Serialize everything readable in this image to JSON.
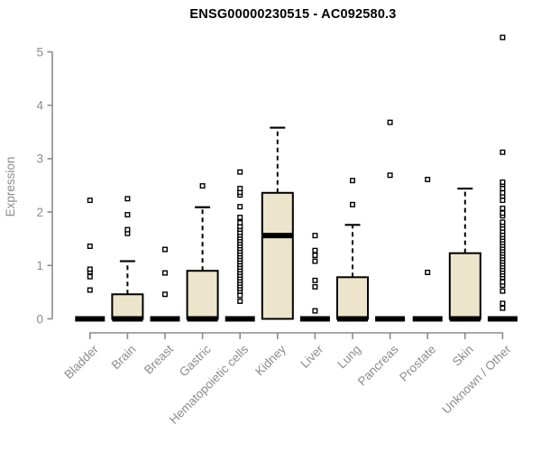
{
  "chart_data": {
    "type": "boxplot",
    "title": "ENSG00000230515 - AC092580.3",
    "ylabel": "Expression",
    "xlabel": "",
    "ylim": [
      0,
      5
    ],
    "yticks": [
      0,
      1,
      2,
      3,
      4,
      5
    ],
    "grid": "off",
    "legend": "none",
    "categories": [
      "Bladder",
      "Brain",
      "Breast",
      "Gastric",
      "Hematopoietic cells",
      "Kidney",
      "Liver",
      "Lung",
      "Pancreas",
      "Prostate",
      "Skin",
      "Unknown / Other"
    ],
    "series": [
      {
        "name": "Bladder",
        "q1": 0,
        "median": 0,
        "q3": 0,
        "whisker_low": 0,
        "whisker_high": 0,
        "outliers": [
          0.54,
          0.79,
          0.88,
          0.93,
          1.36,
          2.22
        ]
      },
      {
        "name": "Brain",
        "q1": 0,
        "median": 0,
        "q3": 0.46,
        "whisker_low": 0,
        "whisker_high": 1.08,
        "outliers": [
          1.6,
          1.67,
          1.95,
          2.25
        ]
      },
      {
        "name": "Breast",
        "q1": 0,
        "median": 0,
        "q3": 0,
        "whisker_low": 0,
        "whisker_high": 0,
        "outliers": [
          0.46,
          0.86,
          1.3
        ]
      },
      {
        "name": "Gastric",
        "q1": 0,
        "median": 0,
        "q3": 0.9,
        "whisker_low": 0,
        "whisker_high": 2.09,
        "outliers": [
          2.49
        ]
      },
      {
        "name": "Hematopoietic cells",
        "q1": 0,
        "median": 0,
        "q3": 0,
        "whisker_low": 0,
        "whisker_high": 0,
        "outliers": [
          0.33,
          0.44,
          0.52,
          0.57,
          0.62,
          0.67,
          0.72,
          0.77,
          0.82,
          0.87,
          0.92,
          0.97,
          1.02,
          1.07,
          1.12,
          1.17,
          1.22,
          1.27,
          1.32,
          1.37,
          1.42,
          1.47,
          1.52,
          1.57,
          1.62,
          1.68,
          1.73,
          1.8,
          1.9,
          2.1,
          2.32,
          2.37,
          2.44,
          2.75
        ]
      },
      {
        "name": "Kidney",
        "q1": 0,
        "median": 1.56,
        "q3": 2.36,
        "whisker_low": 0,
        "whisker_high": 3.58,
        "outliers": []
      },
      {
        "name": "Liver",
        "q1": 0,
        "median": 0,
        "q3": 0,
        "whisker_low": 0,
        "whisker_high": 0,
        "outliers": [
          0.15,
          0.6,
          0.72,
          1.08,
          1.19,
          1.28,
          1.56
        ]
      },
      {
        "name": "Lung",
        "q1": 0,
        "median": 0,
        "q3": 0.78,
        "whisker_low": 0,
        "whisker_high": 1.76,
        "outliers": [
          2.14,
          2.59
        ]
      },
      {
        "name": "Pancreas",
        "q1": 0,
        "median": 0,
        "q3": 0,
        "whisker_low": 0,
        "whisker_high": 0,
        "outliers": [
          2.69,
          3.68
        ]
      },
      {
        "name": "Prostate",
        "q1": 0,
        "median": 0,
        "q3": 0,
        "whisker_low": 0,
        "whisker_high": 0,
        "outliers": [
          0.87,
          2.61
        ]
      },
      {
        "name": "Skin",
        "q1": 0,
        "median": 0,
        "q3": 1.23,
        "whisker_low": 0,
        "whisker_high": 2.44,
        "outliers": []
      },
      {
        "name": "Unknown / Other",
        "q1": 0,
        "median": 0,
        "q3": 0,
        "whisker_low": 0,
        "whisker_high": 0,
        "outliers": [
          0.2,
          0.29,
          0.52,
          0.63,
          0.69,
          0.78,
          0.83,
          0.88,
          0.93,
          0.98,
          1.03,
          1.08,
          1.13,
          1.18,
          1.23,
          1.28,
          1.33,
          1.38,
          1.43,
          1.48,
          1.53,
          1.58,
          1.64,
          1.7,
          1.76,
          1.81,
          1.93,
          1.98,
          2.07,
          2.22,
          2.3,
          2.36,
          2.44,
          2.52,
          2.56,
          3.12,
          5.27
        ]
      }
    ],
    "colors": {
      "box_fill": "#ece5cb",
      "box_stroke": "#000000",
      "median": "#000000",
      "axis": "#8c8c8c",
      "tick_text": "#8c8c8c",
      "title_text": "#000000",
      "outlier_stroke": "#000000",
      "background": "#ffffff"
    }
  }
}
